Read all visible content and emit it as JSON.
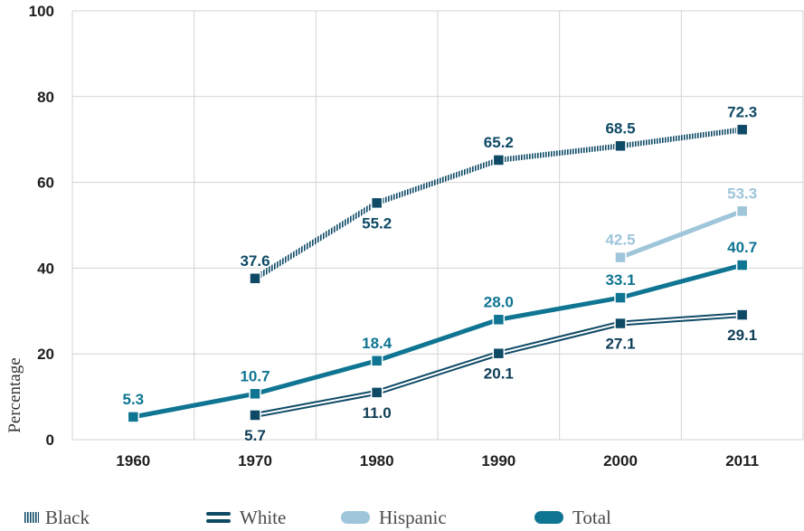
{
  "chart_data": {
    "type": "line",
    "ylabel": "Percentage",
    "xlabel": "",
    "ylim": [
      0,
      100
    ],
    "yticks": [
      0,
      20,
      40,
      60,
      80,
      100
    ],
    "categories": [
      "1960",
      "1970",
      "1980",
      "1990",
      "2000",
      "2011"
    ],
    "grid": true,
    "legend_position": "bottom",
    "series": [
      {
        "name": "Black",
        "style": "hatched",
        "color": "#0e4a66",
        "label_color": "#0e4a66",
        "values": [
          null,
          37.6,
          55.2,
          65.2,
          68.5,
          72.3
        ],
        "labels": [
          null,
          "37.6",
          "55.2",
          "65.2",
          "68.5",
          "72.3"
        ],
        "label_pos": [
          null,
          "above",
          "below",
          "above",
          "above",
          "above"
        ]
      },
      {
        "name": "White",
        "style": "double",
        "color": "#0e4a66",
        "label_color": "#0e3d56",
        "values": [
          null,
          5.7,
          11.0,
          20.1,
          27.1,
          29.1
        ],
        "labels": [
          null,
          "5.7",
          "11.0",
          "20.1",
          "27.1",
          "29.1"
        ],
        "label_pos": [
          null,
          "below",
          "below",
          "below",
          "below",
          "below"
        ]
      },
      {
        "name": "Hispanic",
        "style": "light",
        "color": "#9ec5da",
        "label_color": "#9ec5da",
        "values": [
          null,
          null,
          null,
          null,
          42.5,
          53.3
        ],
        "labels": [
          null,
          null,
          null,
          null,
          "42.5",
          "53.3"
        ],
        "label_pos": [
          null,
          null,
          null,
          null,
          "above",
          "above"
        ]
      },
      {
        "name": "Total",
        "style": "thick",
        "color": "#0f7592",
        "label_color": "#0f7592",
        "values": [
          5.3,
          10.7,
          18.4,
          28.0,
          33.1,
          40.7
        ],
        "labels": [
          "5.3",
          "10.7",
          "18.4",
          "28.0",
          "33.1",
          "40.7"
        ],
        "label_pos": [
          "above",
          "above",
          "above",
          "above",
          "above",
          "above"
        ]
      }
    ]
  }
}
